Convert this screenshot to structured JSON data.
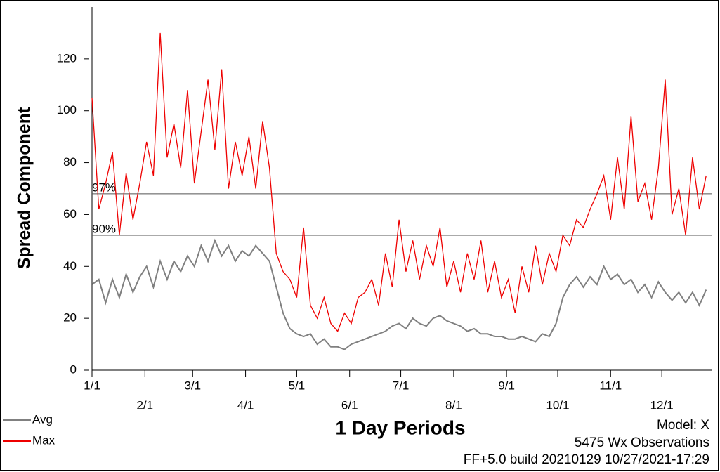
{
  "chart_data": {
    "type": "line",
    "x_label": "1 Day Periods",
    "y_label": "Spread Component",
    "x": [
      1,
      5,
      9,
      13,
      17,
      21,
      25,
      29,
      33,
      37,
      41,
      45,
      49,
      53,
      57,
      61,
      65,
      69,
      73,
      77,
      81,
      85,
      89,
      93,
      97,
      101,
      105,
      109,
      113,
      117,
      121,
      125,
      129,
      133,
      137,
      141,
      145,
      149,
      153,
      157,
      161,
      165,
      169,
      173,
      177,
      181,
      185,
      189,
      193,
      197,
      201,
      205,
      209,
      213,
      217,
      221,
      225,
      229,
      233,
      237,
      241,
      245,
      249,
      253,
      257,
      261,
      265,
      269,
      273,
      277,
      281,
      285,
      289,
      293,
      297,
      301,
      305,
      309,
      313,
      317,
      321,
      325,
      329,
      333,
      337,
      341,
      345,
      349,
      353,
      357,
      361
    ],
    "series": [
      {
        "name": "Avg",
        "color": "#808080",
        "values": [
          33,
          35,
          26,
          35,
          28,
          37,
          30,
          36,
          40,
          32,
          42,
          35,
          42,
          38,
          44,
          40,
          48,
          42,
          50,
          44,
          48,
          42,
          46,
          44,
          48,
          45,
          42,
          32,
          22,
          16,
          14,
          13,
          14,
          10,
          12,
          9,
          9,
          8,
          10,
          11,
          12,
          13,
          14,
          15,
          17,
          18,
          16,
          20,
          18,
          17,
          20,
          21,
          19,
          18,
          17,
          15,
          16,
          14,
          14,
          13,
          13,
          12,
          12,
          13,
          12,
          11,
          14,
          13,
          18,
          28,
          33,
          36,
          32,
          36,
          33,
          40,
          35,
          37,
          33,
          35,
          30,
          33,
          28,
          34,
          30,
          27,
          30,
          26,
          30,
          25,
          31
        ]
      },
      {
        "name": "Max",
        "color": "#ee0000",
        "values": [
          105,
          62,
          72,
          84,
          52,
          76,
          58,
          72,
          88,
          75,
          130,
          82,
          95,
          78,
          108,
          72,
          92,
          112,
          85,
          116,
          70,
          88,
          75,
          90,
          70,
          96,
          78,
          45,
          38,
          35,
          28,
          55,
          25,
          20,
          28,
          18,
          15,
          22,
          18,
          28,
          30,
          35,
          25,
          45,
          32,
          58,
          38,
          50,
          35,
          48,
          40,
          55,
          32,
          42,
          30,
          45,
          35,
          50,
          30,
          42,
          28,
          35,
          22,
          40,
          30,
          48,
          33,
          45,
          38,
          52,
          48,
          58,
          55,
          62,
          68,
          75,
          58,
          82,
          62,
          98,
          65,
          72,
          58,
          78,
          112,
          60,
          70,
          52,
          82,
          62,
          75
        ]
      }
    ],
    "reference_lines": [
      {
        "label": "97%",
        "value": 68
      },
      {
        "label": "90%",
        "value": 52
      }
    ],
    "xlim": [
      1,
      365
    ],
    "xticks": [
      {
        "value": 1,
        "label": "1/1"
      },
      {
        "value": 32,
        "label": "2/1"
      },
      {
        "value": 60,
        "label": "3/1"
      },
      {
        "value": 91,
        "label": "4/1"
      },
      {
        "value": 121,
        "label": "5/1"
      },
      {
        "value": 152,
        "label": "6/1"
      },
      {
        "value": 182,
        "label": "7/1"
      },
      {
        "value": 213,
        "label": "8/1"
      },
      {
        "value": 244,
        "label": "9/1"
      },
      {
        "value": 274,
        "label": "10/1"
      },
      {
        "value": 305,
        "label": "11/1"
      },
      {
        "value": 335,
        "label": "12/1"
      }
    ],
    "ylim": [
      0,
      140
    ],
    "yticks": [
      0,
      20,
      40,
      60,
      80,
      100,
      120
    ],
    "footer": [
      "Model: X",
      "5475 Wx Observations",
      "FF+5.0 build 20210129 10/27/2021-17:29"
    ]
  }
}
